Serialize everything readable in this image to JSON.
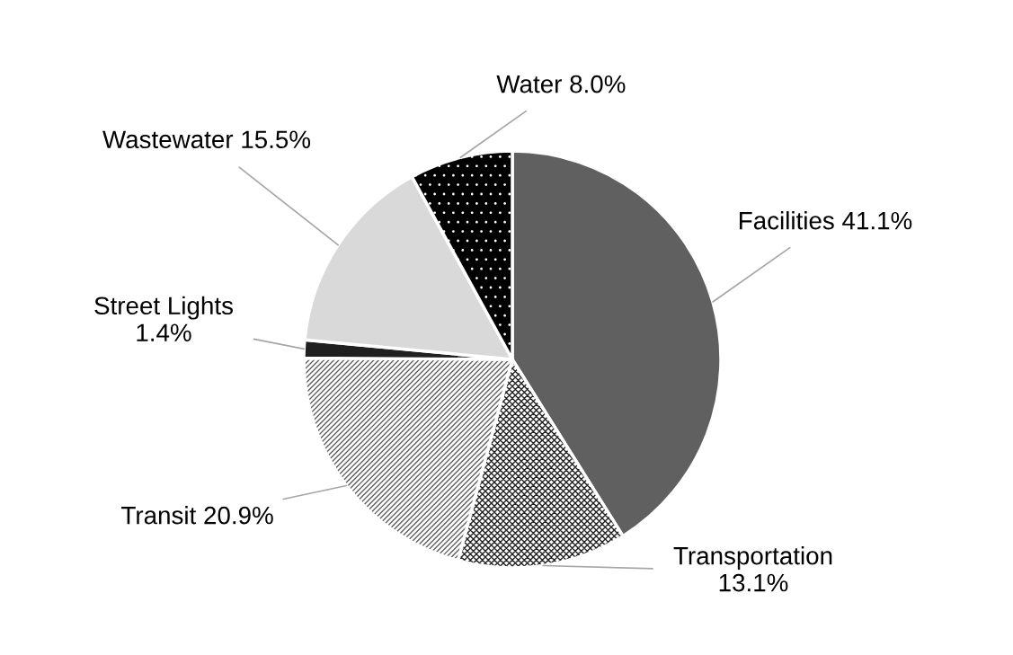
{
  "chart_data": {
    "type": "pie",
    "categories": [
      "Facilities",
      "Transportation",
      "Transit",
      "Street Lights",
      "Wastewater",
      "Water"
    ],
    "values": [
      41.1,
      13.1,
      20.9,
      1.4,
      15.5,
      8.0
    ],
    "value_labels": [
      "41.1%",
      "13.1%",
      "20.9%",
      "1.4%",
      "15.5%",
      "8.0%"
    ],
    "colors": [
      "#606060",
      "#ffffff",
      "#ffffff",
      "#202020",
      "#d9d9d9",
      "#000000"
    ],
    "legend": false
  }
}
